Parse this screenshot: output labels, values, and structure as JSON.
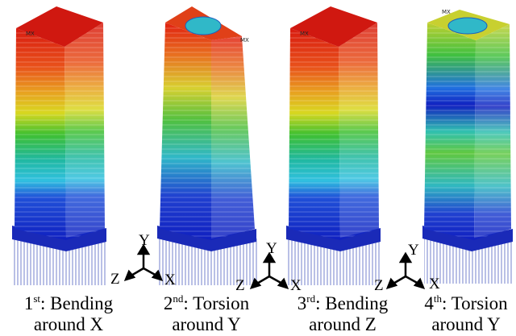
{
  "panels": [
    {
      "ordinal": "1",
      "suffix": "st",
      "mode": ": Bending",
      "around": "around X",
      "max_label": "MX"
    },
    {
      "ordinal": "2",
      "suffix": "nd",
      "mode": ": Torsion",
      "around": "around Y",
      "max_label": "MX"
    },
    {
      "ordinal": "3",
      "suffix": "rd",
      "mode": ": Bending",
      "around": "around Z",
      "max_label": "MX"
    },
    {
      "ordinal": "4",
      "suffix": "th",
      "mode": ": Torsion",
      "around": "around Y",
      "max_label": "MX"
    }
  ],
  "triads": [
    {
      "y": "Y",
      "z": "Z",
      "x": "X"
    },
    {
      "y": "Y",
      "z": "Z",
      "x": "X"
    },
    {
      "y": "Y",
      "z": "Z",
      "x": "X"
    }
  ]
}
